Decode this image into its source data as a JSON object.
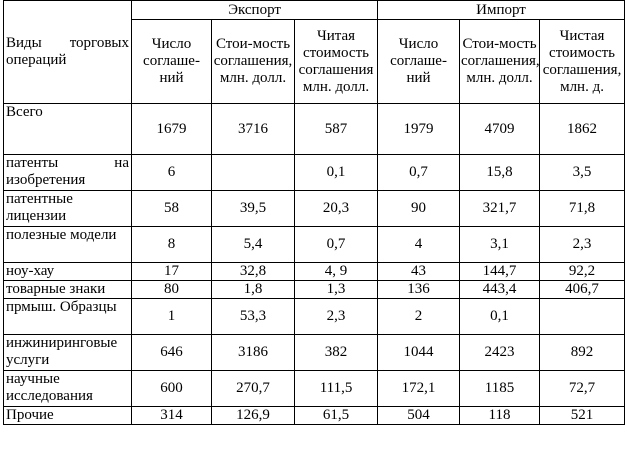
{
  "table": {
    "header": {
      "row_label": "Виды торговых операций",
      "groups": [
        {
          "label": "Экспорт"
        },
        {
          "label": "Импорт"
        }
      ],
      "export_cols": [
        "Число соглаше-ний",
        "Стои-мость соглашения, млн. долл.",
        "Читая стоимость соглашения млн. долл."
      ],
      "import_cols": [
        "Число соглаше-ний",
        "Стои-мость соглашения, млн. долл.",
        "Чистая стоимость соглашения, млн. д."
      ]
    },
    "rows": [
      {
        "label": "Всего",
        "values": [
          "1679",
          "3716",
          "587",
          "1979",
          "4709",
          "1862"
        ]
      },
      {
        "label": "патенты на изобретения",
        "values": [
          "6",
          "",
          "0,1",
          "0,7",
          "15,8",
          "3,5"
        ]
      },
      {
        "label": "патентные лицензии",
        "values": [
          "58",
          "39,5",
          "20,3",
          "90",
          "321,7",
          "71,8"
        ]
      },
      {
        "label": "полезные модели",
        "values": [
          "8",
          "5,4",
          "0,7",
          "4",
          "3,1",
          "2,3"
        ]
      },
      {
        "label": "ноу-хау",
        "values": [
          "17",
          "32,8",
          "4, 9",
          "43",
          "144,7",
          "92,2"
        ]
      },
      {
        "label": "товарные знаки",
        "values": [
          "80",
          "1,8",
          "1,3",
          "136",
          "443,4",
          "406,7"
        ]
      },
      {
        "label": "прмыш. Образцы",
        "values": [
          "1",
          "53,3",
          "2,3",
          "2",
          "0,1",
          ""
        ]
      },
      {
        "label": "инжиниринговые услуги",
        "values": [
          "646",
          "3186",
          "382",
          "1044",
          "2423",
          "892"
        ]
      },
      {
        "label": "научные исследования",
        "values": [
          "600",
          "270,7",
          "111,5",
          "172,1",
          "1185",
          "72,7"
        ]
      },
      {
        "label": "Прочие",
        "values": [
          "314",
          "126,9",
          "61,5",
          "504",
          "118",
          "521"
        ]
      }
    ]
  }
}
